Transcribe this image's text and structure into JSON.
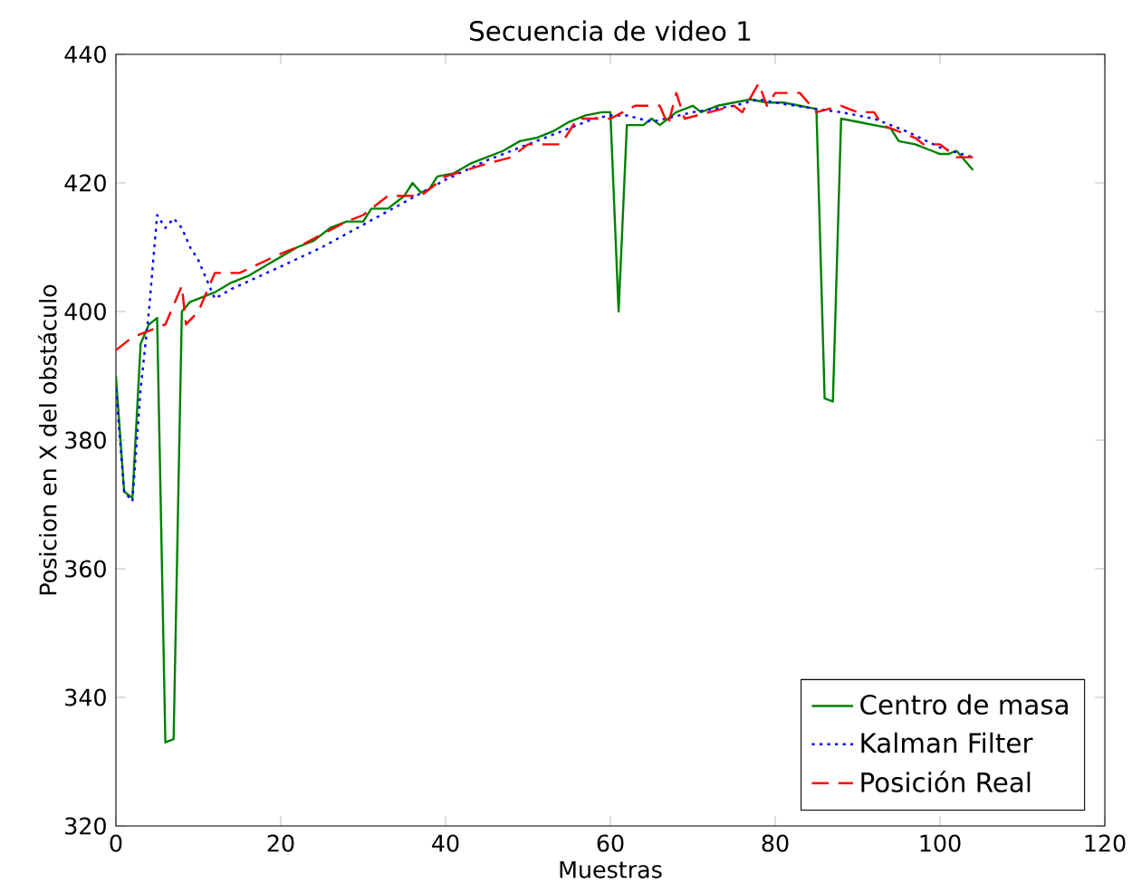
{
  "chart_data": {
    "type": "line",
    "title": "Secuencia de video 1",
    "xlabel": "Muestras",
    "ylabel": "Posicion en X del obstáculo",
    "xlim": [
      0,
      120
    ],
    "ylim": [
      320,
      440
    ],
    "xticks": [
      0,
      20,
      40,
      60,
      80,
      100,
      120
    ],
    "yticks": [
      320,
      340,
      360,
      380,
      400,
      420,
      440
    ],
    "grid": false,
    "legend": "bottom right",
    "marker": "none",
    "series": [
      {
        "name": "Centro de masa",
        "color": "#008000",
        "line_style": "solid",
        "x": [
          0,
          1,
          2,
          3,
          4,
          5,
          6,
          7,
          8,
          9,
          10,
          12,
          14,
          16,
          18,
          20,
          22,
          24,
          26,
          28,
          30,
          31,
          33,
          35,
          36,
          37,
          38,
          39,
          41,
          43,
          45,
          47,
          49,
          51,
          53,
          55,
          57,
          59,
          60,
          61,
          62,
          64,
          65,
          66,
          67,
          68,
          70,
          71,
          73,
          75,
          77,
          79,
          81,
          83,
          85,
          86,
          87,
          88,
          90,
          92,
          94,
          95,
          97,
          99,
          100,
          101,
          102,
          104
        ],
        "values": [
          390,
          372,
          371,
          395,
          398,
          399,
          333,
          333.5,
          400,
          401.5,
          402,
          403,
          404.5,
          405.5,
          407,
          408.5,
          410,
          411,
          413,
          414,
          414,
          416,
          416,
          418,
          420,
          418.5,
          419,
          421,
          421.5,
          423,
          424,
          425,
          426.5,
          427,
          428,
          429.5,
          430.5,
          431,
          431,
          400,
          429,
          429,
          430,
          429,
          430,
          431,
          432,
          431,
          432,
          432.5,
          433,
          432.5,
          432.5,
          432,
          431.5,
          386.5,
          386,
          430,
          429.5,
          429,
          428.5,
          426.5,
          426,
          425,
          424.5,
          424.5,
          425,
          422
        ]
      },
      {
        "name": "Kalman Filter",
        "color": "#0000ff",
        "line_style": "dotted",
        "x": [
          0,
          1,
          2,
          3,
          4,
          5,
          6,
          7,
          8,
          9,
          10,
          11,
          12,
          14,
          20,
          25,
          30,
          35,
          40,
          45,
          50,
          55,
          58,
          60,
          62,
          65,
          70,
          75,
          78,
          80,
          85,
          88,
          92,
          96,
          100,
          104
        ],
        "values": [
          388,
          372,
          370.5,
          388,
          400,
          415,
          413,
          414.5,
          413,
          410,
          408,
          405,
          402,
          403.5,
          407,
          410,
          413.5,
          417,
          420.5,
          423.5,
          426,
          428.5,
          430,
          430.5,
          430.5,
          429.5,
          431,
          432,
          433,
          432.5,
          431.5,
          431,
          430,
          428,
          425.5,
          424
        ]
      },
      {
        "name": "Posición Real",
        "color": "#ff0000",
        "line_style": "dashed",
        "x": [
          0,
          2,
          4,
          6,
          7,
          8,
          8.5,
          10,
          12,
          15,
          20,
          22,
          25,
          28,
          30,
          33,
          37,
          40,
          45,
          48,
          50,
          54,
          56,
          60,
          63,
          66,
          67,
          68,
          69,
          72,
          75,
          76,
          78,
          79,
          80,
          83,
          85,
          88,
          90,
          92,
          93,
          95,
          97,
          98,
          100,
          102,
          104
        ],
        "values": [
          394,
          396,
          397,
          398,
          401,
          404,
          398,
          400,
          406,
          406,
          409,
          410,
          412,
          414,
          415,
          418,
          418,
          421,
          423,
          424,
          426,
          426,
          430,
          430,
          432,
          432,
          429,
          434,
          430,
          431,
          432,
          431,
          435.5,
          432,
          434,
          434,
          431,
          432,
          431,
          431,
          429,
          428,
          427,
          426,
          426,
          424,
          424
        ]
      }
    ]
  }
}
